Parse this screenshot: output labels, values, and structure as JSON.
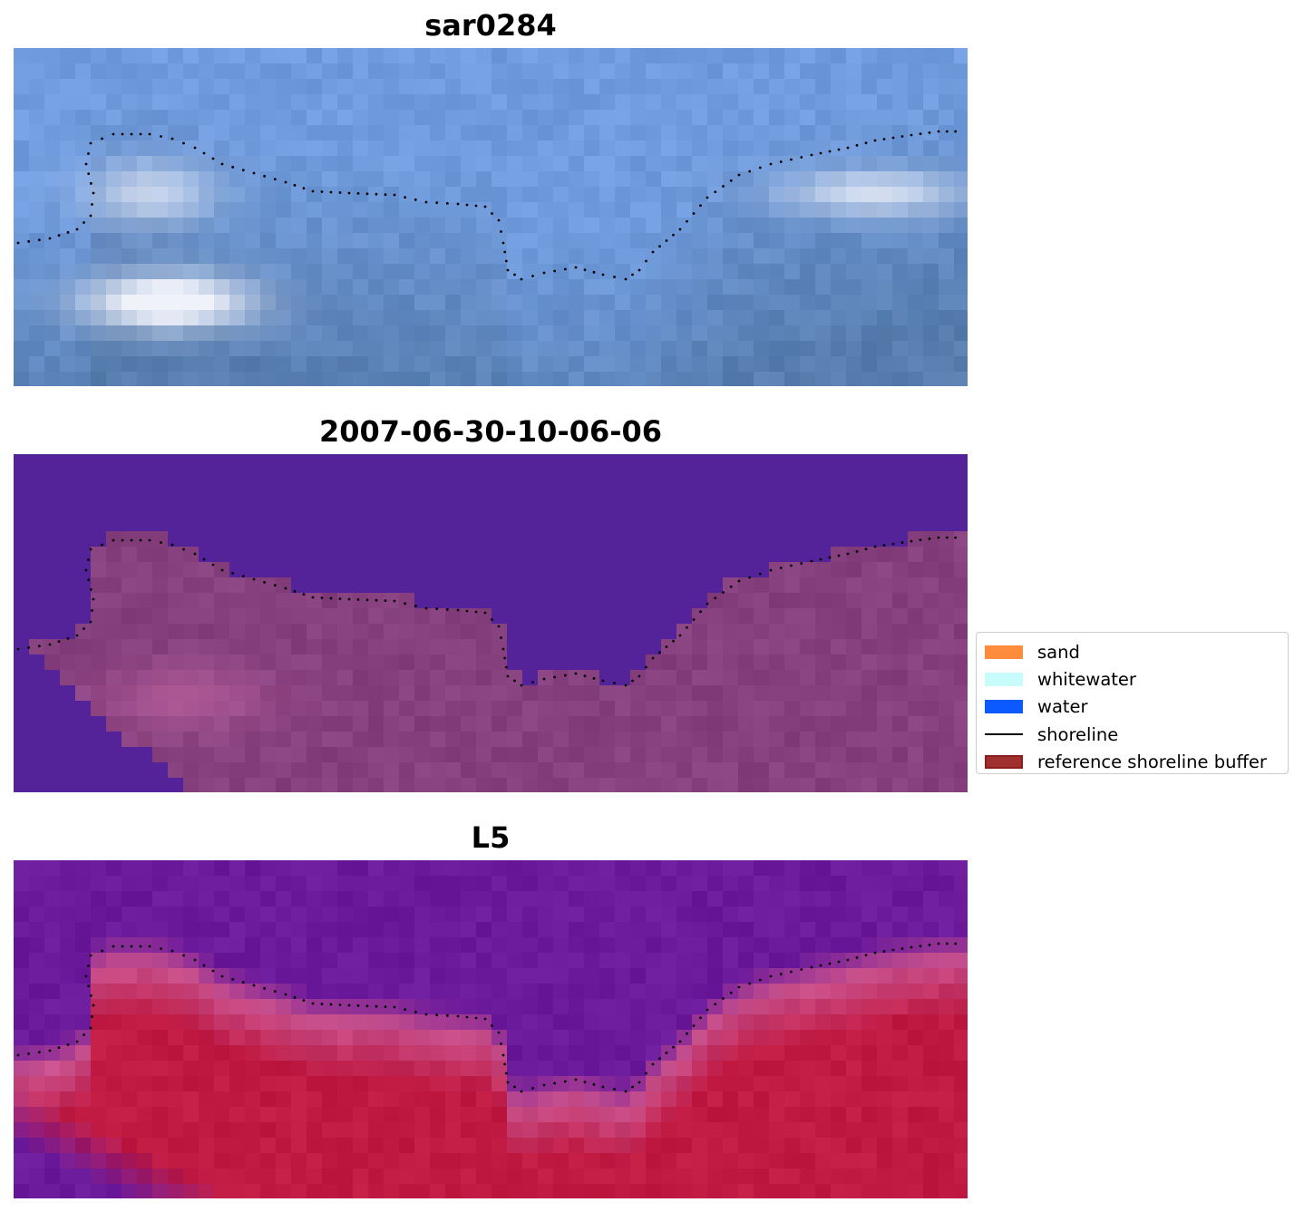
{
  "panels": [
    {
      "title": "sar0284",
      "style": "rgb"
    },
    {
      "title": "2007-06-30-10-06-06",
      "style": "classified"
    },
    {
      "title": "L5",
      "style": "index"
    }
  ],
  "legend": {
    "items": [
      {
        "label": "sand",
        "color": "#ff8c3c",
        "kind": "patch"
      },
      {
        "label": "whitewater",
        "color": "#c8fcfc",
        "kind": "patch"
      },
      {
        "label": "water",
        "color": "#0a5aff",
        "kind": "patch"
      },
      {
        "label": "shoreline",
        "color": "#000000",
        "kind": "line"
      },
      {
        "label": "reference shoreline buffer",
        "color": "#8b1d1d",
        "kind": "patch"
      }
    ]
  },
  "colors": {
    "sky_dark": "#5b8bd6",
    "water_class": "#54239a",
    "land_class": "#86407e",
    "index_low": "#6c1a9c",
    "index_high": "#c01a42"
  }
}
